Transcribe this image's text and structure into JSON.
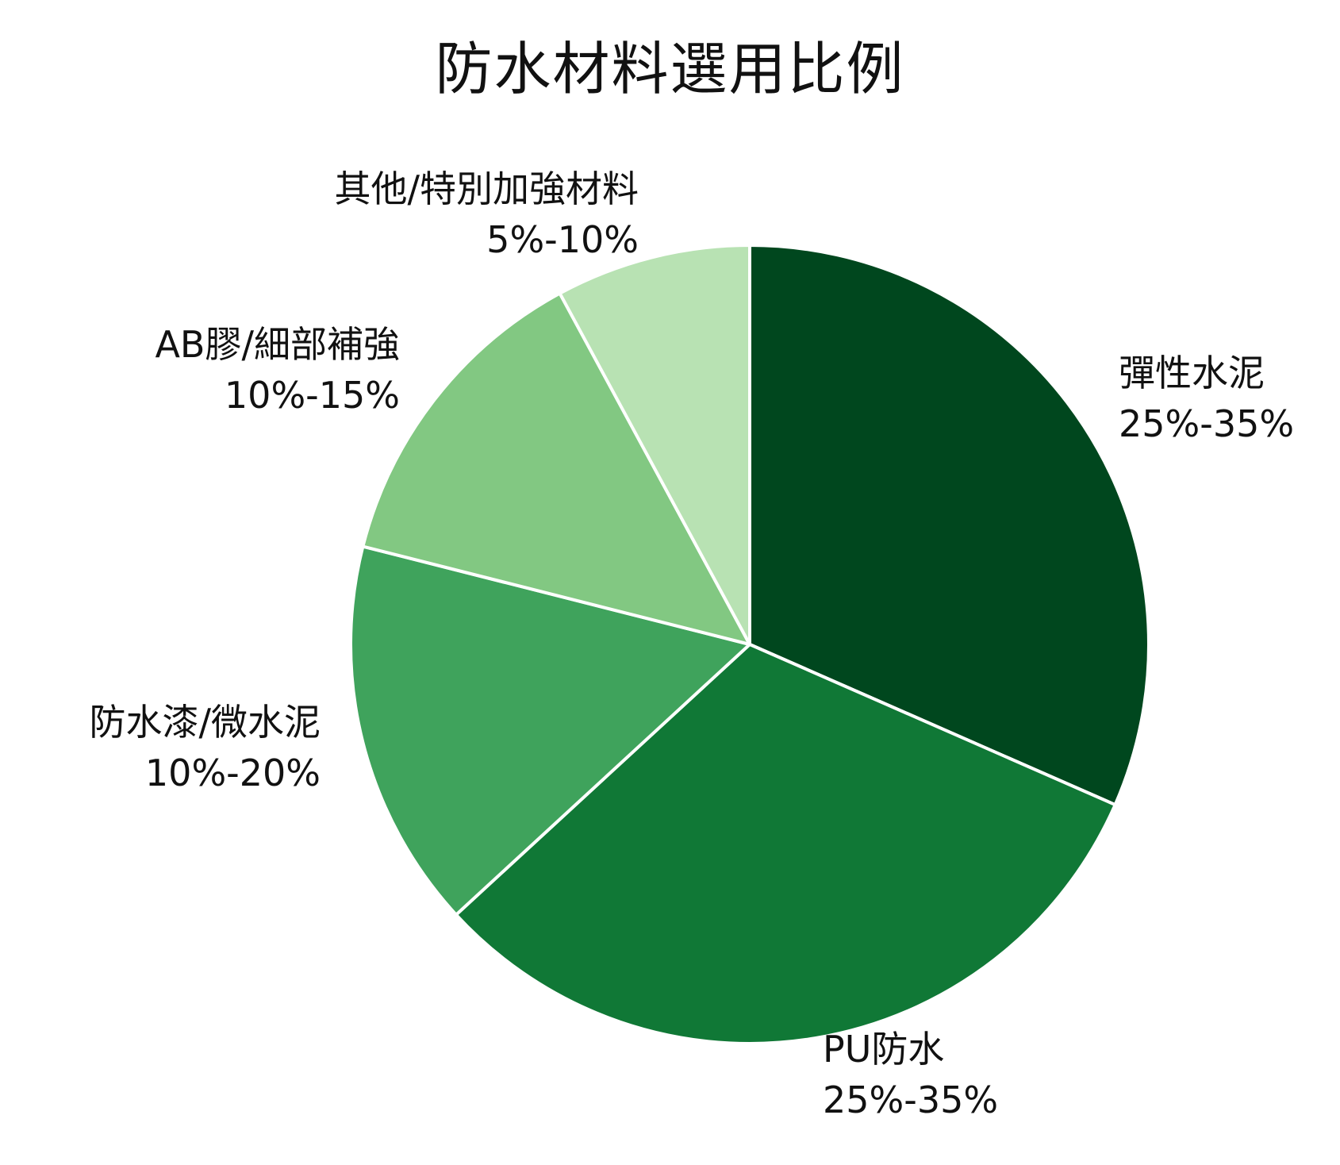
{
  "chart_data": {
    "type": "pie",
    "title": "防水材料選用比例",
    "categories": [
      "彈性水泥",
      "PU防水",
      "防水漆/微水泥",
      "AB膠/細部補強",
      "其他/特別加強材料"
    ],
    "values": [
      30,
      30,
      15,
      12.5,
      7.5
    ],
    "range_labels": [
      "25%-35%",
      "25%-35%",
      "10%-20%",
      "10%-15%",
      "5%-10%"
    ],
    "colors": [
      "#00471e",
      "#107836",
      "#3fa35c",
      "#82c882",
      "#b8e2b3"
    ],
    "start_angle": "12 o'clock",
    "direction": "clockwise"
  }
}
